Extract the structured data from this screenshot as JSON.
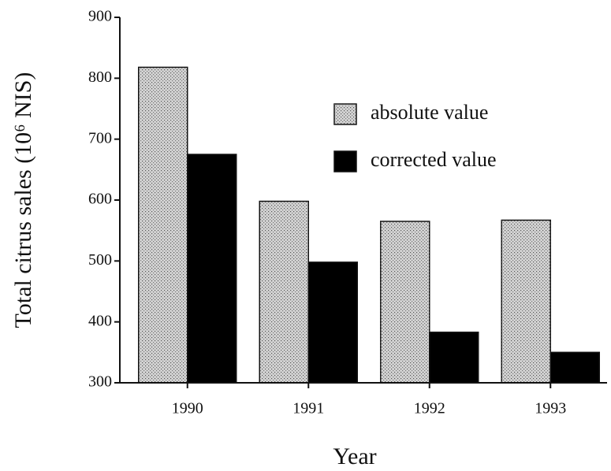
{
  "chart_data": {
    "type": "bar",
    "categories": [
      "1990",
      "1991",
      "1992",
      "1993"
    ],
    "series": [
      {
        "name": "absolute value",
        "color": "#d4d4d4",
        "values": [
          818,
          598,
          565,
          567
        ]
      },
      {
        "name": "corrected value",
        "color": "#000000",
        "values": [
          675,
          498,
          383,
          350
        ]
      }
    ],
    "x_label": "Year",
    "y_label": "Total citrus sales (10⁶ NIS)",
    "ylim": [
      300,
      900
    ],
    "yticks": [
      300,
      400,
      500,
      600,
      700,
      800,
      900
    ],
    "legend": "upper right"
  }
}
